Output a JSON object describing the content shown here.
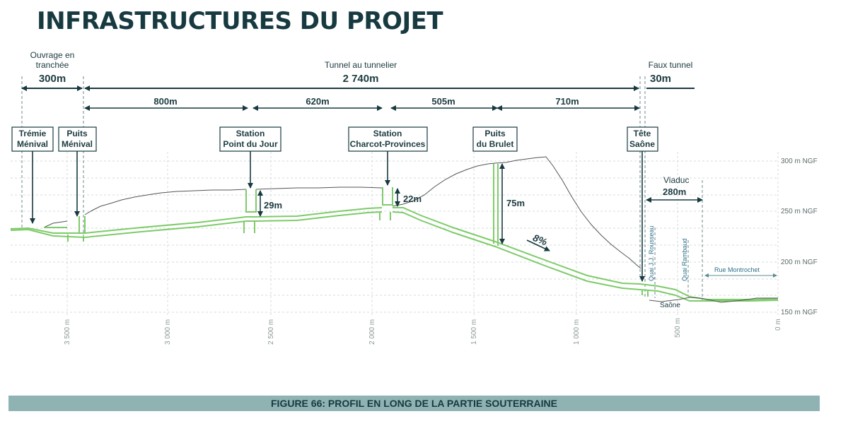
{
  "title": "INFRASTRUCTURES DU PROJET",
  "caption": "FIGURE 66: PROFIL EN LONG DE LA PARTIE SOUTERRAINE",
  "sections": {
    "tranchee": {
      "label1": "Ouvrage en",
      "label2": "tranchée",
      "length": "300m"
    },
    "tunnel": {
      "label": "Tunnel au tunnelier",
      "length": "2 740m"
    },
    "faux_tunnel": {
      "label": "Faux tunnel",
      "length": "30m"
    }
  },
  "segments": [
    "800m",
    "620m",
    "505m",
    "710m"
  ],
  "stations": [
    {
      "line1": "Trémie",
      "line2": "Ménival"
    },
    {
      "line1": "Puits",
      "line2": "Ménival"
    },
    {
      "line1": "Station",
      "line2": "Point du Jour"
    },
    {
      "line1": "Station",
      "line2": "Charcot-Provinces"
    },
    {
      "line1": "Puits",
      "line2": "du Brulet"
    },
    {
      "line1": "Tête",
      "line2": "Saône"
    }
  ],
  "depths": {
    "point_du_jour": "29m",
    "charcot": "22m",
    "brulet": "75m"
  },
  "slope": "8%",
  "viaduc": {
    "label": "Viaduc",
    "length": "280m"
  },
  "place_labels": {
    "quai_rousseau": "Quai J.J. Rousseau",
    "quai_rambaud": "Quai Rambaud",
    "rue_montrochet": "Rue Montrochet",
    "saone": "Saône"
  },
  "elevation_labels": [
    "300 m NGF",
    "250 m NGF",
    "200 m NGF",
    "150 m NGF"
  ],
  "distance_labels": [
    "3 500 m",
    "3 000 m",
    "2 500 m",
    "2 000 m",
    "1 500 m",
    "1 000 m",
    "500 m",
    "0 m"
  ],
  "colors": {
    "title": "#173a40",
    "caption_bg": "#8fb2b3",
    "tunnel": "#7ecb6a",
    "terrain": "#555555"
  }
}
